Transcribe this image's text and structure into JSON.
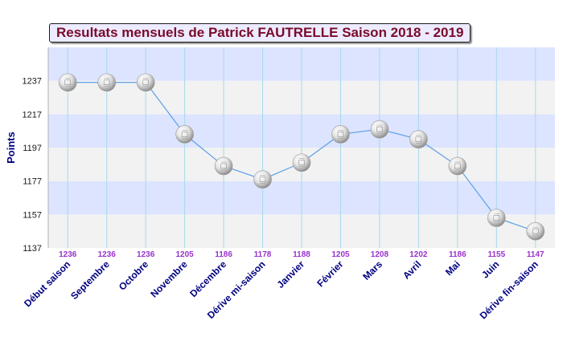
{
  "chart_data": {
    "type": "line",
    "title": "Resultats mensuels de Patrick FAUTRELLE Saison 2018 - 2019",
    "ylabel": "Points",
    "xlabel": "",
    "categories": [
      "Début saison",
      "Septembre",
      "Octobre",
      "Novembre",
      "Décembre",
      "Dérive mi-saison",
      "Janvier",
      "Février",
      "Mars",
      "Avril",
      "Mai",
      "Juin",
      "Dérive fin-saison"
    ],
    "series": [
      {
        "values": [
          1236,
          1236,
          1236,
          1205,
          1186,
          1178,
          1188,
          1205,
          1208,
          1202,
          1186,
          1155,
          1147
        ]
      }
    ],
    "value_labels": [
      "1236",
      "1236",
      "1236",
      "1205",
      "1186",
      "1178",
      "1188",
      "1205",
      "1208",
      "1202",
      "1186",
      "1155",
      "1147"
    ],
    "yticks": [
      1137,
      1157,
      1177,
      1197,
      1217,
      1237
    ],
    "ytick_labels": [
      "1137",
      "1157",
      "1177",
      "1197",
      "1217",
      "1237"
    ],
    "ylim": [
      1137,
      1257
    ],
    "grid": true,
    "legend": "none",
    "colors": {
      "line": "#5aa0e6",
      "band_blue": "#dde4ff",
      "band_gray": "#f2f2f2",
      "gridline": "#a8d8ec",
      "title_text": "#7a0a2a",
      "title_bg": "#ecebff",
      "axis_label": "#000080",
      "value_label": "#9932cc"
    },
    "marker_icon": "ping-pong-ball-icon"
  }
}
